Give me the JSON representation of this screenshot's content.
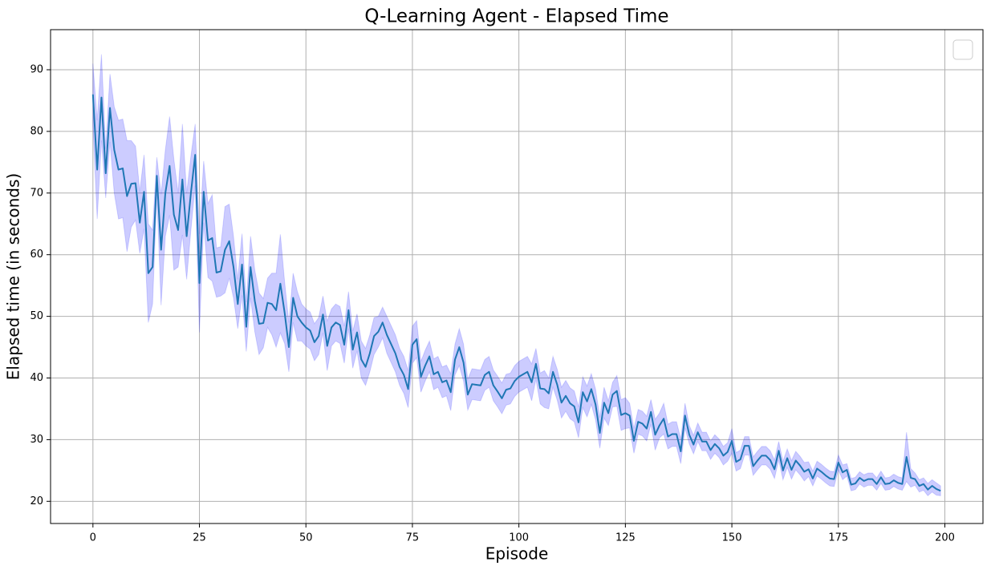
{
  "chart_data": {
    "type": "line",
    "title": "Q-Learning Agent - Elapsed Time",
    "xlabel": "Episode",
    "ylabel": "Elapsed time (in seconds)",
    "x": [
      0,
      1,
      2,
      3,
      4,
      5,
      6,
      7,
      8,
      9,
      10,
      11,
      12,
      13,
      14,
      15,
      16,
      17,
      18,
      19,
      20,
      21,
      22,
      23,
      24,
      25,
      26,
      27,
      28,
      29,
      30,
      31,
      32,
      33,
      34,
      35,
      36,
      37,
      38,
      39,
      40,
      41,
      42,
      43,
      44,
      45,
      46,
      47,
      48,
      49,
      50,
      51,
      52,
      53,
      54,
      55,
      56,
      57,
      58,
      59,
      60,
      61,
      62,
      63,
      64,
      65,
      66,
      67,
      68,
      69,
      70,
      71,
      72,
      73,
      74,
      75,
      76,
      77,
      78,
      79,
      80,
      81,
      82,
      83,
      84,
      85,
      86,
      87,
      88,
      89,
      90,
      91,
      92,
      93,
      94,
      95,
      96,
      97,
      98,
      99,
      100,
      101,
      102,
      103,
      104,
      105,
      106,
      107,
      108,
      109,
      110,
      111,
      112,
      113,
      114,
      115,
      116,
      117,
      118,
      119,
      120,
      121,
      122,
      123,
      124,
      125,
      126,
      127,
      128,
      129,
      130,
      131,
      132,
      133,
      134,
      135,
      136,
      137,
      138,
      139,
      140,
      141,
      142,
      143,
      144,
      145,
      146,
      147,
      148,
      149,
      150,
      151,
      152,
      153,
      154,
      155,
      156,
      157,
      158,
      159,
      160,
      161,
      162,
      163,
      164,
      165,
      166,
      167,
      168,
      169,
      170,
      171,
      172,
      173,
      174,
      175,
      176,
      177,
      178,
      179,
      180,
      181,
      182,
      183,
      184,
      185,
      186,
      187,
      188,
      189,
      190,
      191,
      192,
      193,
      194,
      195,
      196,
      197,
      198,
      199
    ],
    "series": [
      {
        "color": "#1f77b4",
        "band_color": "#0000ff",
        "values": [
          86,
          73.8,
          85.5,
          73.2,
          83.8,
          77,
          73.8,
          74,
          69.5,
          71.5,
          71.6,
          65.2,
          70.2,
          57,
          58,
          72.8,
          60.8,
          70,
          74.4,
          66.5,
          64,
          72.2,
          63,
          70,
          76.2,
          55.4,
          70.2,
          62.3,
          62.7,
          57.1,
          57.3,
          60.8,
          62.2,
          58,
          52,
          58.4,
          48.3,
          58,
          52.5,
          48.8,
          48.9,
          52.2,
          52,
          51,
          55.3,
          50.6,
          45,
          53,
          50,
          49,
          48.2,
          47.7,
          45.8,
          46.8,
          50.3,
          45.2,
          48.2,
          49,
          48.6,
          45.4,
          51,
          44.6,
          47.4,
          43,
          41.8,
          44,
          46.8,
          47.5,
          49,
          47,
          45.5,
          44,
          41.8,
          40.5,
          38.2,
          45.4,
          46.3,
          40.2,
          42,
          43.5,
          40.6,
          41,
          39.3,
          39.6,
          37.7,
          43,
          45,
          42.5,
          37.3,
          39,
          38.9,
          38.8,
          40.5,
          41,
          38.8,
          37.8,
          36.7,
          38.1,
          38.3,
          39.5,
          40.2,
          40.6,
          41,
          39.3,
          42.3,
          38.3,
          38.2,
          37.5,
          41,
          38.9,
          36,
          37.1,
          35.9,
          35.4,
          32.8,
          37.7,
          36.2,
          38.2,
          35.7,
          31.1,
          36,
          34.3,
          37.3,
          37.9,
          34,
          34.3,
          33.9,
          29.8,
          32.9,
          32.6,
          31.8,
          34.5,
          30.8,
          32.3,
          33.4,
          30.5,
          30.9,
          30.9,
          28.1,
          33.9,
          30.8,
          29.2,
          31.2,
          29.7,
          29.7,
          28.3,
          29.3,
          28.6,
          27.4,
          28,
          29.8,
          26.4,
          26.8,
          29,
          29,
          25.7,
          26.6,
          27.4,
          27.4,
          26.7,
          25.2,
          28.2,
          25,
          27,
          25.1,
          26.6,
          25.8,
          24.8,
          25.2,
          23.7,
          25.3,
          24.8,
          24.2,
          23.7,
          23.6,
          26.3,
          24.7,
          25.1,
          22.7,
          22.9,
          23.8,
          23.3,
          23.6,
          23.6,
          22.8,
          23.9,
          22.8,
          22.9,
          23.4,
          23,
          22.8,
          27.2,
          23.8,
          23.6,
          22.5,
          22.8,
          21.9,
          22.5,
          22,
          21.7
        ],
        "errors": [
          5,
          8,
          7,
          4,
          5.5,
          7,
          8,
          8,
          9,
          7,
          6,
          5,
          6,
          8,
          6,
          3,
          9,
          7,
          8,
          9,
          6,
          9,
          7,
          6,
          5,
          8,
          5,
          6,
          7,
          4,
          4,
          7,
          6,
          5,
          4,
          5,
          4,
          5,
          5,
          5,
          4,
          4,
          5,
          6,
          8,
          5,
          4,
          4,
          4,
          3,
          3,
          3,
          3,
          3,
          3,
          4,
          3,
          3,
          3,
          3,
          3,
          3,
          3,
          3,
          3,
          3,
          3,
          2.5,
          2.5,
          3,
          3,
          3,
          3,
          3,
          3,
          3,
          3,
          2.5,
          2.5,
          2.5,
          2.5,
          2.5,
          2.5,
          2.5,
          3,
          2.5,
          3,
          3,
          2.5,
          2.5,
          2.5,
          2.5,
          2.5,
          2.5,
          2.5,
          2.5,
          2.5,
          2.5,
          2.5,
          2.5,
          2.5,
          2.5,
          2.5,
          3,
          2.5,
          2.5,
          3,
          2.5,
          2.5,
          2.5,
          2.5,
          2.5,
          2.5,
          2.5,
          2.5,
          2.5,
          2.5,
          2.5,
          2.5,
          2.5,
          2.5,
          2,
          2,
          2.5,
          2.5,
          2.5,
          2,
          2,
          2,
          2,
          2,
          2,
          2.5,
          2,
          2.5,
          2,
          2,
          2,
          2,
          2,
          1.5,
          1.5,
          1.5,
          1.5,
          1.5,
          1.5,
          1.5,
          1.5,
          1.5,
          1.5,
          2,
          1.5,
          1.5,
          1.5,
          1.5,
          1.5,
          1.5,
          1.5,
          1.5,
          1.5,
          1.5,
          1.5,
          1.5,
          1.5,
          1.5,
          1.5,
          1.5,
          1.5,
          1.2,
          1.2,
          1.2,
          1.2,
          1.2,
          1.2,
          1.2,
          1.2,
          1.2,
          1,
          1,
          1,
          1,
          1,
          1,
          1,
          1,
          1,
          1,
          1,
          1,
          1,
          1,
          4,
          1.5,
          1,
          1,
          1,
          1,
          1,
          1,
          0.8
        ]
      }
    ],
    "xlim": [
      -9.95,
      208.95
    ],
    "ylim": [
      16.4,
      96.5
    ],
    "xticks": [
      0,
      25,
      50,
      75,
      100,
      125,
      150,
      175,
      200
    ],
    "yticks": [
      20,
      30,
      40,
      50,
      60,
      70,
      80,
      90
    ],
    "grid": true
  }
}
